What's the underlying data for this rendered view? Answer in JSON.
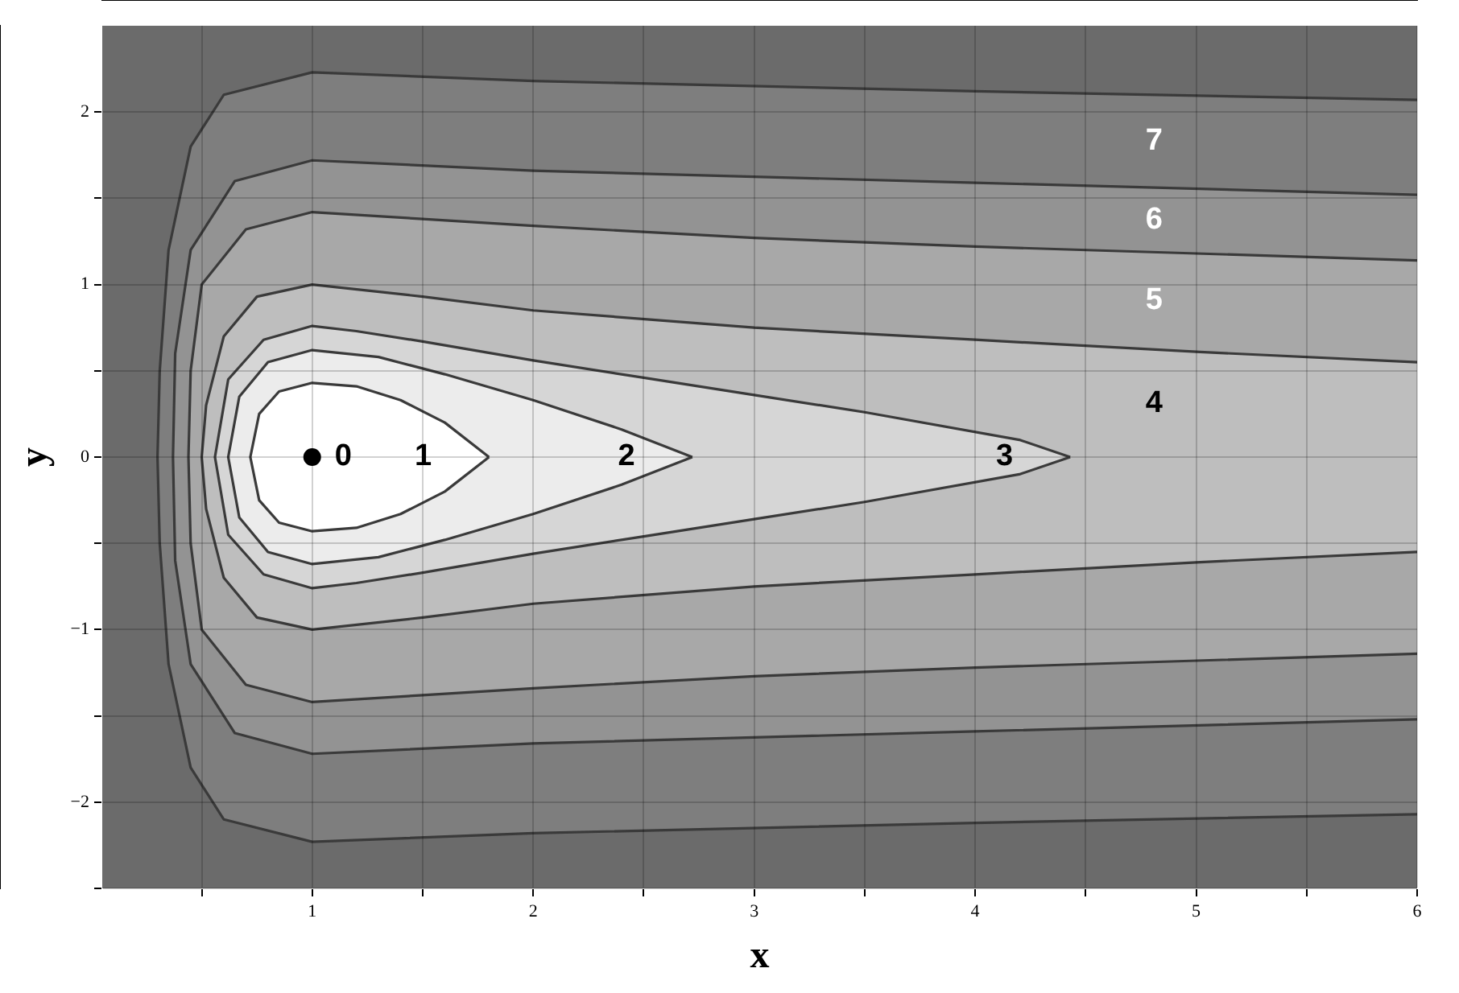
{
  "chart_data": {
    "type": "area",
    "xlabel": "x",
    "ylabel": "y",
    "xlim": [
      0.05,
      6
    ],
    "ylim": [
      -2.5,
      2.5
    ],
    "xticks": [
      {
        "value": 0.5,
        "label": null
      },
      1,
      {
        "value": 1.5,
        "label": null
      },
      2,
      {
        "value": 2.5,
        "label": null
      },
      3,
      {
        "value": 3.5,
        "label": null
      },
      4,
      {
        "value": 4.5,
        "label": null
      },
      5,
      {
        "value": 5.5,
        "label": null
      },
      6
    ],
    "yticks": [
      {
        "value": -2.5,
        "label": null
      },
      {
        "value": -2,
        "label": "−2"
      },
      {
        "value": -1.5,
        "label": null
      },
      {
        "value": -1,
        "label": "−1"
      },
      {
        "value": -0.5,
        "label": null
      },
      0,
      {
        "value": 0.5,
        "label": null
      },
      1,
      {
        "value": 1.5,
        "label": null
      },
      2
    ],
    "grid": true,
    "legend": false,
    "series": [
      {
        "name": "7",
        "color": "#7e7e7e",
        "x": [
          6,
          4,
          2,
          1,
          0.6,
          0.45,
          0.35,
          0.31,
          0.3,
          0.31,
          0.35,
          0.45,
          0.6,
          1,
          2,
          4,
          6
        ],
        "values": [
          2.07,
          2.12,
          2.18,
          2.23,
          2.1,
          1.8,
          1.2,
          0.5,
          0,
          -0.5,
          -1.2,
          -1.8,
          -2.1,
          -2.23,
          -2.18,
          -2.12,
          -2.07
        ]
      },
      {
        "name": "6",
        "color": "#939393",
        "x": [
          6,
          4,
          2,
          1,
          0.65,
          0.45,
          0.38,
          0.37,
          0.38,
          0.45,
          0.65,
          1,
          2,
          4,
          6
        ],
        "values": [
          1.52,
          1.59,
          1.66,
          1.72,
          1.6,
          1.2,
          0.6,
          0,
          -0.6,
          -1.2,
          -1.6,
          -1.72,
          -1.66,
          -1.59,
          -1.52
        ]
      },
      {
        "name": "5",
        "color": "#a8a8a8",
        "x": [
          6,
          4,
          3,
          2,
          1.5,
          1,
          0.7,
          0.5,
          0.45,
          0.44,
          0.45,
          0.5,
          0.7,
          1,
          1.5,
          2,
          3,
          4,
          6
        ],
        "values": [
          1.14,
          1.22,
          1.27,
          1.34,
          1.38,
          1.42,
          1.32,
          1,
          0.5,
          0,
          -0.5,
          -1,
          -1.32,
          -1.42,
          -1.38,
          -1.34,
          -1.27,
          -1.22,
          -1.14
        ]
      },
      {
        "name": "4",
        "color": "#bebebe",
        "x": [
          6,
          5,
          4,
          3,
          2,
          1.5,
          1,
          0.75,
          0.6,
          0.52,
          0.5,
          0.52,
          0.6,
          0.75,
          1,
          1.5,
          2,
          3,
          4,
          5,
          6
        ],
        "values": [
          0.55,
          0.61,
          0.68,
          0.75,
          0.85,
          0.93,
          1,
          0.93,
          0.7,
          0.3,
          0,
          -0.3,
          -0.7,
          -0.93,
          -1,
          -0.93,
          -0.85,
          -0.75,
          -0.68,
          -0.61,
          -0.55
        ]
      },
      {
        "name": "3",
        "color": "#d6d6d6",
        "x": [
          4.43,
          4.2,
          3.5,
          3,
          2.5,
          2,
          1.5,
          1.2,
          1,
          0.78,
          0.62,
          0.56,
          0.62,
          0.78,
          1,
          1.2,
          1.5,
          2,
          2.5,
          3,
          3.5,
          4.2,
          4.43
        ],
        "values": [
          0,
          0.1,
          0.26,
          0.36,
          0.46,
          0.56,
          0.67,
          0.73,
          0.76,
          0.68,
          0.45,
          0,
          -0.45,
          -0.68,
          -0.76,
          -0.73,
          -0.67,
          -0.56,
          -0.46,
          -0.36,
          -0.26,
          -0.1,
          0
        ]
      },
      {
        "name": "2",
        "color": "#ececec",
        "x": [
          2.72,
          2.4,
          2,
          1.6,
          1.3,
          1,
          0.8,
          0.67,
          0.62,
          0.67,
          0.8,
          1,
          1.3,
          1.6,
          2,
          2.4,
          2.72
        ],
        "values": [
          0,
          0.16,
          0.33,
          0.48,
          0.58,
          0.62,
          0.55,
          0.35,
          0,
          -0.35,
          -0.55,
          -0.62,
          -0.58,
          -0.48,
          -0.33,
          -0.16,
          0
        ]
      },
      {
        "name": "1",
        "color": "#ffffff",
        "x": [
          1.8,
          1.6,
          1.4,
          1.2,
          1,
          0.85,
          0.76,
          0.72,
          0.76,
          0.85,
          1,
          1.2,
          1.4,
          1.6,
          1.8
        ],
        "values": [
          0,
          0.2,
          0.33,
          0.41,
          0.43,
          0.38,
          0.25,
          0,
          -0.25,
          -0.38,
          -0.43,
          -0.41,
          -0.33,
          -0.2,
          0
        ]
      },
      {
        "type": "scatter",
        "name": "0",
        "color": "#000000",
        "marker": "circle",
        "x": [
          1
        ],
        "values": [
          0
        ]
      }
    ]
  }
}
